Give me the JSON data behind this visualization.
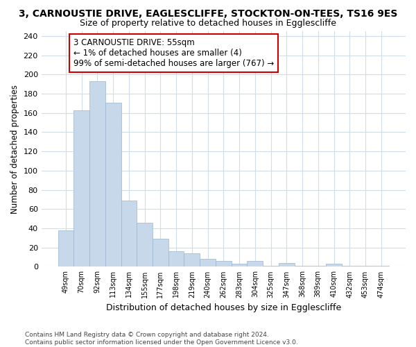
{
  "title": "3, CARNOUSTIE DRIVE, EAGLESCLIFFE, STOCKTON-ON-TEES, TS16 9ES",
  "subtitle": "Size of property relative to detached houses in Egglescliffe",
  "xlabel": "Distribution of detached houses by size in Egglescliffe",
  "ylabel": "Number of detached properties",
  "categories": [
    "49sqm",
    "70sqm",
    "92sqm",
    "113sqm",
    "134sqm",
    "155sqm",
    "177sqm",
    "198sqm",
    "219sqm",
    "240sqm",
    "262sqm",
    "283sqm",
    "304sqm",
    "325sqm",
    "347sqm",
    "368sqm",
    "389sqm",
    "410sqm",
    "432sqm",
    "453sqm",
    "474sqm"
  ],
  "values": [
    38,
    163,
    193,
    171,
    69,
    46,
    29,
    16,
    14,
    8,
    6,
    3,
    6,
    1,
    4,
    1,
    1,
    3,
    1,
    1,
    1
  ],
  "bar_color": "#c8d8eb",
  "bar_edge_color": "#9ab5d0",
  "annotation_box_color": "#cc0000",
  "annotation_text": "3 CARNOUSTIE DRIVE: 55sqm\n← 1% of detached houses are smaller (4)\n99% of semi-detached houses are larger (767) →",
  "ylim": [
    0,
    245
  ],
  "yticks": [
    0,
    20,
    40,
    60,
    80,
    100,
    120,
    140,
    160,
    180,
    200,
    220,
    240
  ],
  "footnote": "Contains HM Land Registry data © Crown copyright and database right 2024.\nContains public sector information licensed under the Open Government Licence v3.0.",
  "background_color": "#ffffff",
  "grid_color": "#d0dce8"
}
